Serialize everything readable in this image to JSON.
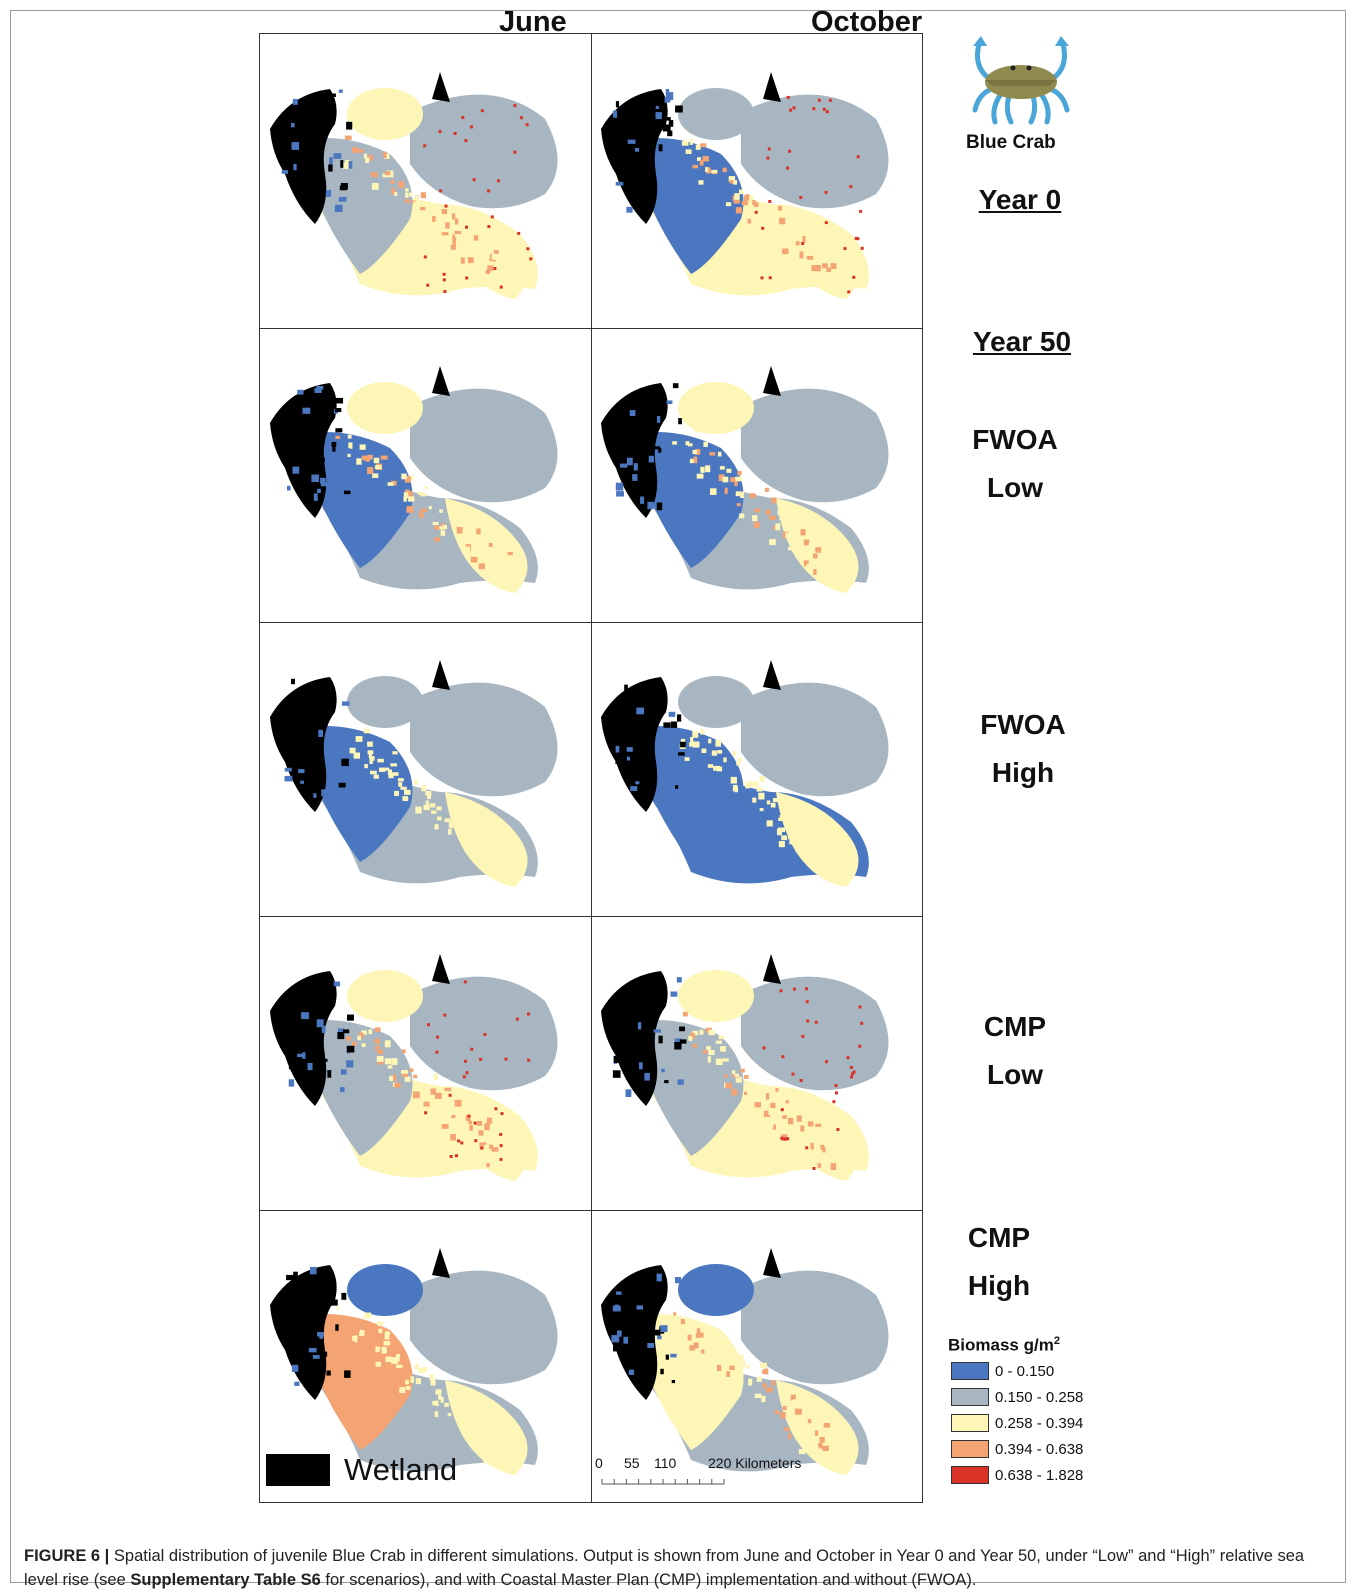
{
  "figure": {
    "columns": [
      "June",
      "October"
    ],
    "species": "Blue Crab",
    "rows": [
      {
        "label_lines": [
          "Year 0"
        ],
        "underline": true
      },
      {
        "label_lines": [
          "FWOA",
          "Low"
        ],
        "header": "Year 50"
      },
      {
        "label_lines": [
          "FWOA",
          "High"
        ]
      },
      {
        "label_lines": [
          "CMP",
          "Low"
        ]
      },
      {
        "label_lines": [
          "CMP",
          "High"
        ]
      }
    ],
    "year50_header": "Year 50",
    "wetland_label": "Wetland",
    "scale_bar": {
      "ticks": [
        "0",
        "55",
        "110",
        "220 Kilometers"
      ]
    }
  },
  "legend": {
    "title": "Biomass g/m",
    "title_superscript": "2",
    "classes": [
      {
        "label": "0 - 0.150",
        "color": "#4a77c0"
      },
      {
        "label": "0.150 - 0.258",
        "color": "#a8b6c2"
      },
      {
        "label": "0.258 - 0.394",
        "color": "#fdf6b7"
      },
      {
        "label": "0.394 - 0.638",
        "color": "#f4a373"
      },
      {
        "label": "0.638 - 1.828",
        "color": "#d93226"
      }
    ]
  },
  "caption": {
    "label": "FIGURE 6 |",
    "text_1": " Spatial distribution of juvenile Blue Crab in different simulations. Output is shown from June and October in Year 0 and Year 50, under “Low” and “High” relative sea level rise (see ",
    "bold_ref": "Supplementary Table S6",
    "text_2": " for scenarios), and with Coastal Master Plan (CMP) implementation and without (FWOA)."
  },
  "colors": {
    "wetland": "#000000",
    "low_biomass": "#4a77c0",
    "mid_low": "#a8b6c2",
    "mid": "#fdf6b7",
    "mid_high": "#f4a373",
    "high": "#d93226"
  }
}
